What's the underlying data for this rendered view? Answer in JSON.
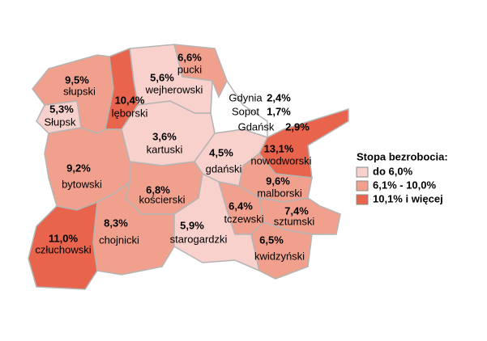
{
  "regions": [
    {
      "name": "pucki",
      "rate": "6,6%",
      "color": "#f0a08c"
    },
    {
      "name": "wejherowski",
      "rate": "5,6%",
      "color": "#f8d0cc"
    },
    {
      "name": "słupski",
      "rate": "9,5%",
      "color": "#f0a08c"
    },
    {
      "name": "lęborski",
      "rate": "10,4%",
      "color": "#e8644c"
    },
    {
      "name": "Słupsk",
      "rate": "5,3%",
      "color": "#f8d0cc"
    },
    {
      "name": "kartuski",
      "rate": "3,6%",
      "color": "#f8d0cc"
    },
    {
      "name": "gdański",
      "rate": "4,5%",
      "color": "#f8d0cc"
    },
    {
      "name": "nowodworski",
      "rate": "13,1%",
      "color": "#e8644c"
    },
    {
      "name": "bytowski",
      "rate": "9,2%",
      "color": "#f0a08c"
    },
    {
      "name": "kościerski",
      "rate": "6,8%",
      "color": "#f0a08c"
    },
    {
      "name": "malborski",
      "rate": "9,6%",
      "color": "#f0a08c"
    },
    {
      "name": "tczewski",
      "rate": "6,4%",
      "color": "#f0a08c"
    },
    {
      "name": "sztumski",
      "rate": "7,4%",
      "color": "#f0a08c"
    },
    {
      "name": "człuchowski",
      "rate": "11,0%",
      "color": "#e8644c"
    },
    {
      "name": "chojnicki",
      "rate": "8,3%",
      "color": "#f0a08c"
    },
    {
      "name": "starogardzki",
      "rate": "5,9%",
      "color": "#f8d0cc"
    },
    {
      "name": "kwidzyński",
      "rate": "6,5%",
      "color": "#f0a08c"
    }
  ],
  "cities": [
    {
      "name": "Gdynia",
      "rate": "2,4%"
    },
    {
      "name": "Sopot",
      "rate": "1,7%"
    },
    {
      "name": "Gdańsk",
      "rate": "2,9%"
    }
  ],
  "legend": {
    "title": "Stopa bezrobocia:",
    "items": [
      {
        "label": "do 6,0%",
        "color": "#f8d0cc"
      },
      {
        "label": "6,1% - 10,0%",
        "color": "#f0a08c"
      },
      {
        "label": "10,1% i więcej",
        "color": "#e8644c"
      }
    ]
  }
}
